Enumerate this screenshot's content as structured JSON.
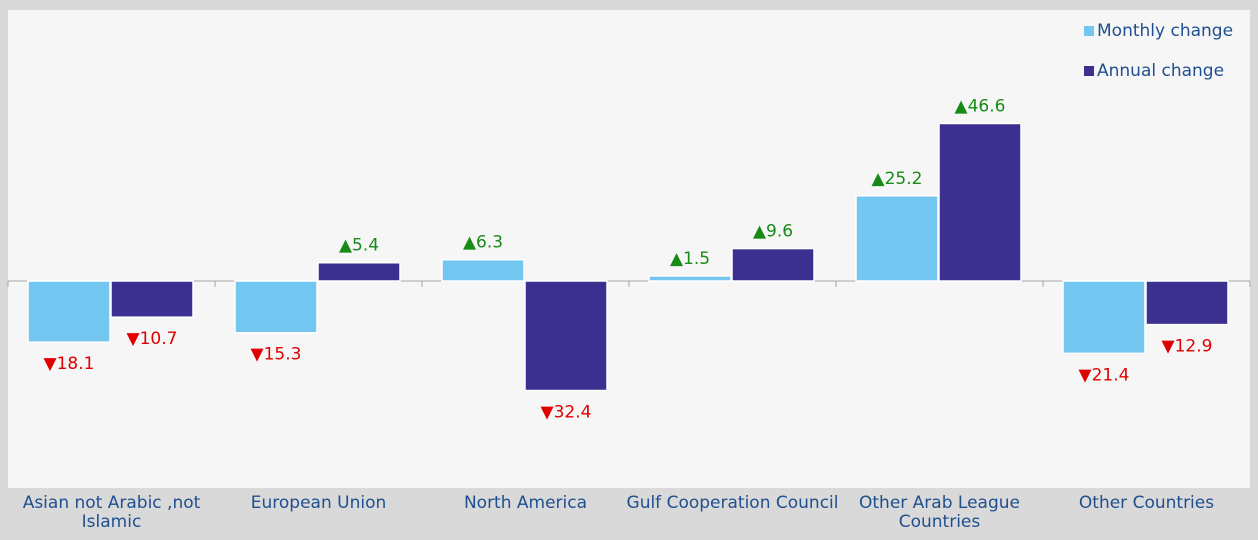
{
  "chart_data": {
    "type": "bar",
    "categories": [
      "Asian not Arabic ,not Islamic",
      "European Union",
      "North America",
      "Gulf Cooperation Council",
      "Other Arab League Countries",
      "Other Countries"
    ],
    "series": [
      {
        "name": "Monthly change",
        "color": "#72c6ef",
        "values": [
          -18.1,
          -15.3,
          6.3,
          1.5,
          25.2,
          -21.4
        ],
        "value_labels": [
          "▼18.1",
          "▼15.3",
          "▲6.3",
          "▲1.5",
          "▲25.2",
          "▼21.4"
        ]
      },
      {
        "name": "Annual change",
        "color": "#3b2f8f",
        "values": [
          -10.7,
          5.4,
          -32.4,
          9.6,
          46.6,
          -12.9
        ],
        "value_labels": [
          "▼10.7",
          "▲5.4",
          "▼32.4",
          "▲9.6",
          "▲46.6",
          "▼12.9"
        ]
      }
    ],
    "legend": "top-right"
  }
}
